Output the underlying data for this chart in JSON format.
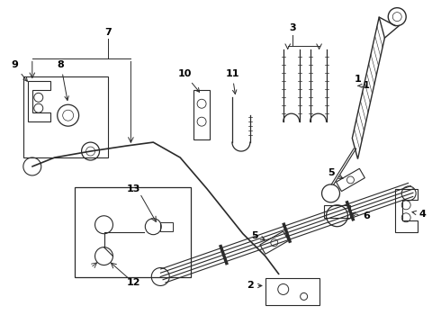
{
  "background_color": "#ffffff",
  "line_color": "#2a2a2a",
  "label_color": "#000000",
  "figsize": [
    4.9,
    3.6
  ],
  "dpi": 100
}
